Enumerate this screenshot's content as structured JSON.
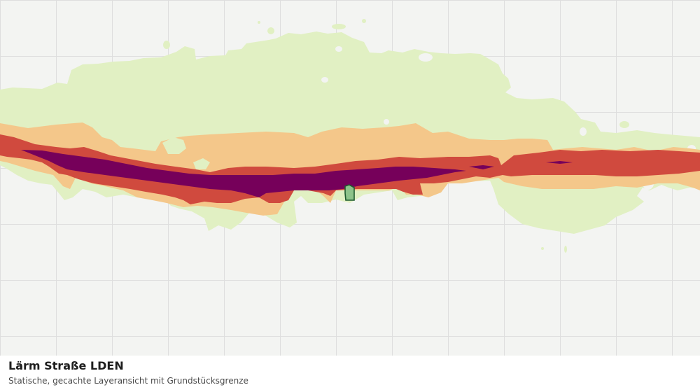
{
  "caption": {
    "title": "Lärm Straße LDEN",
    "subtitle": "Statische, gecachte Layeransicht mit Grundstücksgrenze"
  },
  "noise_layer": {
    "colors": {
      "background": "#f3f4f2",
      "grid": "#dedede",
      "low": "#e1f0c3",
      "medium": "#f4c78a",
      "high": "#d04a3e",
      "very_high": "#76005a",
      "parcel_fill": "#8dc38a",
      "parcel_border": "#1f5a2f"
    }
  }
}
